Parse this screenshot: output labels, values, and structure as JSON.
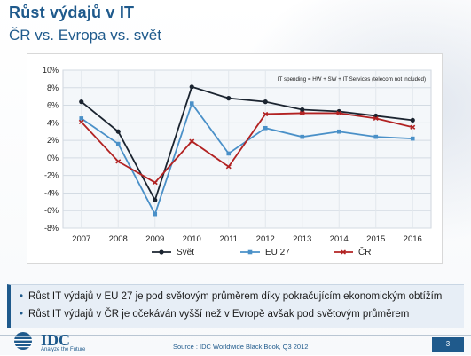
{
  "slide": {
    "title": "Růst výdajů v IT",
    "subtitle": "ČR vs. Evropa vs. svět",
    "bullets": [
      "Růst IT výdajů v EU 27 je pod světovým průměrem díky pokračujícím ekonomickým obtížím",
      "Růst IT výdajů v ČR je očekáván vyšší než v Evropě avšak pod světovým průměrem"
    ],
    "logo_text": "IDC",
    "logo_tagline": "Analyze the Future",
    "source": "Source : IDC Worldwide Black Book, Q3 2012",
    "page_number": "3"
  },
  "chart_data": {
    "type": "line",
    "annotation": "IT spending = HW + SW + IT Services (telecom not included)",
    "x": [
      "2007",
      "2008",
      "2009",
      "2010",
      "2011",
      "2012",
      "2013",
      "2014",
      "2015",
      "2016"
    ],
    "ylim": [
      -8,
      10
    ],
    "yticks": [
      "-8%",
      "-6%",
      "-4%",
      "-2%",
      "0%",
      "2%",
      "4%",
      "6%",
      "8%",
      "10%"
    ],
    "grid": true,
    "legend_position": "bottom",
    "series": [
      {
        "name": "Svět",
        "color": "#1b2430",
        "values": [
          6.4,
          3.0,
          -4.8,
          8.1,
          6.8,
          6.4,
          5.5,
          5.3,
          4.8,
          4.3
        ]
      },
      {
        "name": "EU 27",
        "color": "#4a90c8",
        "values": [
          4.5,
          1.6,
          -6.4,
          6.2,
          0.5,
          3.4,
          2.4,
          3.0,
          2.4,
          2.2
        ]
      },
      {
        "name": "ČR",
        "color": "#b22222",
        "values": [
          4.1,
          -0.4,
          -2.8,
          1.9,
          -1.0,
          5.0,
          5.1,
          5.1,
          4.5,
          3.5
        ]
      }
    ]
  }
}
